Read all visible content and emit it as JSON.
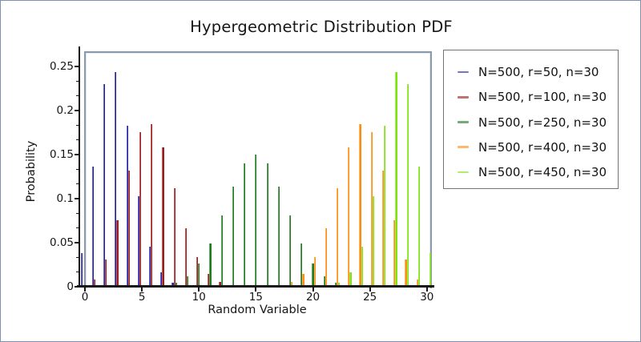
{
  "window": {
    "background": "#ffffff",
    "outer_border_color": "#8091AF",
    "frame_color": "#8C99AB",
    "axis_color": "#161616"
  },
  "chart_data": {
    "type": "bar",
    "title": "Hypergeometric Distribution PDF",
    "xlabel": "Random Variable",
    "ylabel": "Probability",
    "xlim": [
      0,
      30
    ],
    "ylim": [
      0,
      0.26
    ],
    "grid": false,
    "legend_position": "outside-right",
    "x_major_ticks": [
      0,
      5,
      10,
      15,
      20,
      25,
      30
    ],
    "y_major_ticks": [
      0,
      0.05,
      0.1,
      0.15,
      0.2,
      0.25
    ],
    "y_tick_labels": [
      "0",
      "0.05",
      "0.1",
      "0.15",
      "0.2",
      "0.25"
    ],
    "y_minor_ticks_per_major": 3,
    "series": [
      {
        "name": "N=500, r=50, n=30",
        "color": "#2121A3",
        "k_start": 0,
        "values": [
          0.03835,
          0.13664,
          0.23006,
          0.24366,
          0.18231,
          0.10261,
          0.04516,
          0.01596,
          0.00461,
          0.0011,
          0.00022
        ]
      },
      {
        "name": "N=500, r=100, n=30",
        "color": "#9E1B1B",
        "k_start": 0,
        "values": [
          0.00098,
          0.00795,
          0.03068,
          0.07522,
          0.13168,
          0.1753,
          0.18454,
          0.15777,
          0.11159,
          0.06622,
          0.0333,
          0.0143,
          0.00528,
          0.00168,
          0.00046,
          0.00011,
          2e-05
        ]
      },
      {
        "name": "N=500, r=250, n=30",
        "color": "#1E7B1E",
        "k_start": 6,
        "values": [
          0.00041,
          0.0015,
          0.0046,
          0.01188,
          0.02615,
          0.04939,
          0.08056,
          0.11394,
          0.14013,
          0.1501,
          0.14013,
          0.11394,
          0.08056,
          0.04939,
          0.02615,
          0.01188,
          0.0046,
          0.0015,
          0.00041
        ]
      },
      {
        "name": "N=500, r=400, n=30",
        "color": "#FB8D10",
        "k_start": 14,
        "values": [
          2e-05,
          0.00011,
          0.00046,
          0.00168,
          0.00528,
          0.0143,
          0.0333,
          0.06622,
          0.11159,
          0.15777,
          0.18454,
          0.1753,
          0.13168,
          0.07522,
          0.03068,
          0.00795,
          0.00098
        ]
      },
      {
        "name": "N=500, r=450, n=30",
        "color": "#7EE211",
        "k_start": 20,
        "values": [
          0.00022,
          0.0011,
          0.00461,
          0.01596,
          0.04516,
          0.10261,
          0.18231,
          0.24366,
          0.23006,
          0.13664,
          0.03835
        ]
      }
    ]
  }
}
